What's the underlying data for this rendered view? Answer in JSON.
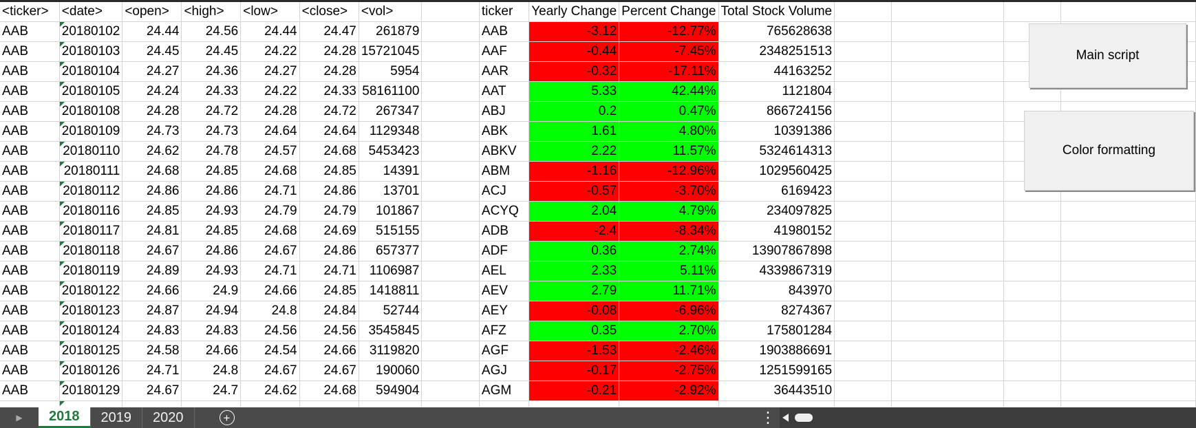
{
  "columns": {
    "headers": [
      "<ticker>",
      "<date>",
      "<open>",
      "<high>",
      "<low>",
      "<close>",
      "<vol>",
      "",
      "ticker",
      "Yearly Change",
      "Percent Change",
      "Total Stock Volume",
      "",
      "",
      "",
      ""
    ]
  },
  "rows": [
    [
      "AAB",
      "20180102",
      "24.44",
      "24.56",
      "24.44",
      "24.47",
      "261879",
      "AAB",
      "-3.12",
      "-12.77%",
      "765628638",
      "red"
    ],
    [
      "AAB",
      "20180103",
      "24.45",
      "24.45",
      "24.22",
      "24.28",
      "15721045",
      "AAF",
      "-0.44",
      "-7.45%",
      "2348251513",
      "red"
    ],
    [
      "AAB",
      "20180104",
      "24.27",
      "24.36",
      "24.27",
      "24.28",
      "5954",
      "AAR",
      "-0.32",
      "-17.11%",
      "44163252",
      "red"
    ],
    [
      "AAB",
      "20180105",
      "24.24",
      "24.33",
      "24.22",
      "24.33",
      "58161100",
      "AAT",
      "5.33",
      "42.44%",
      "1121804",
      "green"
    ],
    [
      "AAB",
      "20180108",
      "24.28",
      "24.72",
      "24.28",
      "24.72",
      "267347",
      "ABJ",
      "0.2",
      "0.47%",
      "866724156",
      "green"
    ],
    [
      "AAB",
      "20180109",
      "24.73",
      "24.73",
      "24.64",
      "24.64",
      "1129348",
      "ABK",
      "1.61",
      "4.80%",
      "10391386",
      "green"
    ],
    [
      "AAB",
      "20180110",
      "24.62",
      "24.78",
      "24.57",
      "24.68",
      "5453423",
      "ABKV",
      "2.22",
      "11.57%",
      "5324614313",
      "green"
    ],
    [
      "AAB",
      "20180111",
      "24.68",
      "24.85",
      "24.68",
      "24.85",
      "14391",
      "ABM",
      "-1.16",
      "-12.96%",
      "1029560425",
      "red"
    ],
    [
      "AAB",
      "20180112",
      "24.86",
      "24.86",
      "24.71",
      "24.86",
      "13701",
      "ACJ",
      "-0.57",
      "-3.70%",
      "6169423",
      "red"
    ],
    [
      "AAB",
      "20180116",
      "24.85",
      "24.93",
      "24.79",
      "24.79",
      "101867",
      "ACYQ",
      "2.04",
      "4.79%",
      "234097825",
      "green"
    ],
    [
      "AAB",
      "20180117",
      "24.81",
      "24.85",
      "24.68",
      "24.69",
      "515155",
      "ADB",
      "-2.4",
      "-8.34%",
      "41980152",
      "red"
    ],
    [
      "AAB",
      "20180118",
      "24.67",
      "24.86",
      "24.67",
      "24.86",
      "657377",
      "ADF",
      "0.36",
      "2.74%",
      "13907867898",
      "green"
    ],
    [
      "AAB",
      "20180119",
      "24.89",
      "24.93",
      "24.71",
      "24.71",
      "1106987",
      "AEL",
      "2.33",
      "5.11%",
      "4339867319",
      "green"
    ],
    [
      "AAB",
      "20180122",
      "24.66",
      "24.9",
      "24.66",
      "24.85",
      "1418811",
      "AEV",
      "2.79",
      "11.71%",
      "843970",
      "green"
    ],
    [
      "AAB",
      "20180123",
      "24.87",
      "24.94",
      "24.8",
      "24.84",
      "52744",
      "AEY",
      "-0.08",
      "-6.96%",
      "8274367",
      "red"
    ],
    [
      "AAB",
      "20180124",
      "24.83",
      "24.83",
      "24.56",
      "24.56",
      "3545845",
      "AFZ",
      "0.35",
      "2.70%",
      "175801284",
      "green"
    ],
    [
      "AAB",
      "20180125",
      "24.58",
      "24.66",
      "24.54",
      "24.66",
      "3119820",
      "AGF",
      "-1.53",
      "-2.46%",
      "1903886691",
      "red"
    ],
    [
      "AAB",
      "20180126",
      "24.71",
      "24.8",
      "24.67",
      "24.67",
      "190060",
      "AGJ",
      "-0.17",
      "-2.75%",
      "1251599165",
      "red"
    ],
    [
      "AAB",
      "20180129",
      "24.67",
      "24.7",
      "24.62",
      "24.68",
      "594904",
      "AGM",
      "-0.21",
      "-2.92%",
      "36443510",
      "red"
    ]
  ],
  "buttons": {
    "main_script": "Main script",
    "color_formatting": "Color formatting"
  },
  "tabs": [
    {
      "label": "2018",
      "active": true
    },
    {
      "label": "2019",
      "active": false
    },
    {
      "label": "2020",
      "active": false
    }
  ],
  "colors": {
    "negative": "#ff0000",
    "positive": "#00ff00",
    "accent": "#1e7a3c"
  },
  "icons": {
    "add_sheet": "plus-circle-icon",
    "more_options": "vertical-ellipsis-icon"
  }
}
